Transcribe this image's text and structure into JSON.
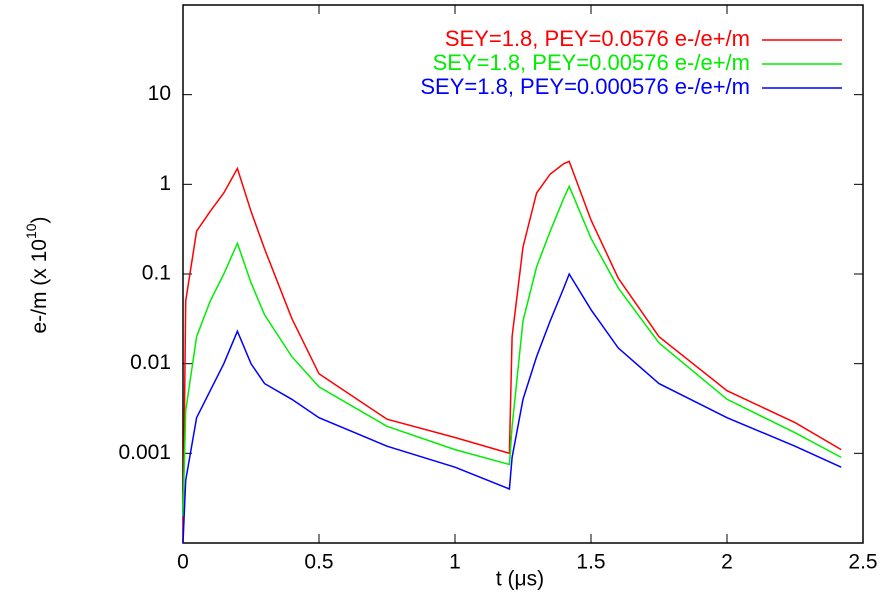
{
  "chart_data": {
    "type": "line",
    "xlabel": "t (μs)",
    "ylabel": [
      "e-/m (x 10",
      "10",
      ")"
    ],
    "log_y": true,
    "grid": false,
    "legend": "top-right",
    "x": [
      0,
      0.01,
      0.05,
      0.1,
      0.15,
      0.2,
      0.25,
      0.3,
      0.4,
      0.5,
      0.75,
      1.0,
      1.2,
      1.21,
      1.25,
      1.3,
      1.35,
      1.4,
      1.42,
      1.5,
      1.6,
      1.75,
      2.0,
      2.25,
      2.42
    ],
    "series": [
      {
        "name": "SEY=1.8, PEY=0.0576 e-/e+/m",
        "color": "#ff0000",
        "values": [
          0.0001,
          0.05,
          0.3,
          0.5,
          0.8,
          1.5,
          0.5,
          0.19,
          0.032,
          0.0077,
          0.0024,
          0.0015,
          0.001,
          0.02,
          0.2,
          0.8,
          1.3,
          1.7,
          1.8,
          0.4,
          0.09,
          0.02,
          0.005,
          0.0022,
          0.0011
        ]
      },
      {
        "name": "SEY=1.8, PEY=0.00576 e-/e+/m",
        "color": "#00ee00",
        "values": [
          0.0002,
          0.003,
          0.02,
          0.05,
          0.1,
          0.22,
          0.08,
          0.035,
          0.012,
          0.0055,
          0.002,
          0.0011,
          0.00075,
          0.002,
          0.03,
          0.12,
          0.3,
          0.7,
          0.95,
          0.25,
          0.07,
          0.017,
          0.004,
          0.0017,
          0.0009
        ]
      },
      {
        "name": "SEY=1.8, PEY=0.000576 e-/e+/m",
        "color": "#0000ff",
        "values": [
          0.0001,
          0.0005,
          0.0025,
          0.005,
          0.01,
          0.023,
          0.01,
          0.006,
          0.004,
          0.0025,
          0.0012,
          0.0007,
          0.0004,
          0.0009,
          0.004,
          0.012,
          0.03,
          0.07,
          0.1,
          0.04,
          0.015,
          0.006,
          0.0025,
          0.0012,
          0.0007
        ]
      }
    ],
    "xlim": [
      0,
      2.5
    ],
    "xticks": [
      0,
      0.5,
      1,
      1.5,
      2,
      2.5
    ],
    "ylim": [
      0.0001,
      100
    ],
    "yticks": [
      0.001,
      0.01,
      0.1,
      1,
      10
    ]
  }
}
